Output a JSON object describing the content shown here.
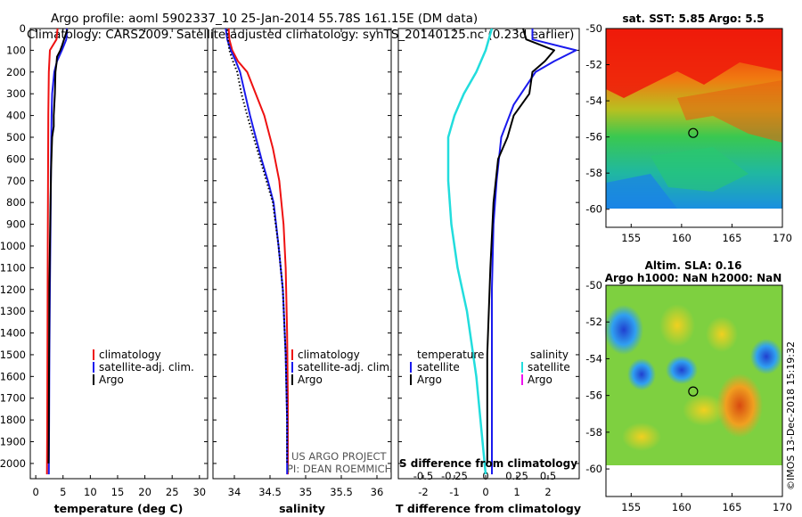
{
  "title": {
    "line1": "Argo profile: aoml 5902337_10 25-Jan-2014 55.78S 161.15E (DM data)",
    "line2": "Climatology: CARS2009. Satellite-adjusted climatology: synTS_20140125.nc (0.23d earlier)"
  },
  "credits": {
    "project": "US ARGO PROJECT",
    "pi": "PI: DEAN ROEMMICH",
    "imos": "©IMOS 13-Dec-2018 15:19:32"
  },
  "colors": {
    "climatology": "#ee1111",
    "satellite": "#1a1aee",
    "argo": "#000000",
    "satellite_salinity": "#22dddd",
    "argo_salinity": "#ee11ee"
  },
  "chart_data": [
    {
      "type": "line",
      "id": "temperature",
      "xlabel": "temperature (deg C)",
      "ylabel": "",
      "xlim": [
        -1,
        31.5
      ],
      "ylim": [
        2070,
        0
      ],
      "xticks": [
        0,
        5,
        10,
        15,
        20,
        25,
        30
      ],
      "yticks": [
        0,
        100,
        200,
        300,
        400,
        500,
        600,
        700,
        800,
        900,
        1000,
        1100,
        1200,
        1300,
        1400,
        1500,
        1600,
        1700,
        1800,
        1900,
        2000
      ],
      "legend": [
        "climatology",
        "satellite-adj. clim.",
        "Argo"
      ],
      "series": [
        {
          "name": "climatology",
          "x": [
            4.0,
            3.8,
            2.6,
            2.4,
            2.3,
            2.25,
            2.2,
            2.15,
            2.1,
            2.05
          ],
          "y": [
            0,
            50,
            100,
            200,
            400,
            700,
            1000,
            1400,
            1800,
            2050
          ]
        },
        {
          "name": "satellite-adj. clim.",
          "x": [
            5.7,
            5.6,
            4.8,
            3.9,
            3.4,
            3.0,
            2.9,
            2.8,
            2.7,
            2.6,
            2.5,
            2.45,
            2.4
          ],
          "y": [
            0,
            50,
            100,
            150,
            200,
            300,
            400,
            600,
            900,
            1200,
            1500,
            1800,
            2050
          ]
        },
        {
          "name": "Argo",
          "x": [
            5.8,
            5.3,
            4.8,
            4.5,
            4.3,
            3.9,
            3.8,
            3.6,
            3.5,
            3.3,
            3.3,
            3.0,
            2.8,
            2.7,
            2.6,
            2.5,
            2.45,
            2.4,
            2.35
          ],
          "y": [
            5,
            40,
            80,
            100,
            110,
            130,
            160,
            200,
            300,
            400,
            450,
            500,
            650,
            800,
            1000,
            1200,
            1500,
            1800,
            2000
          ]
        }
      ]
    },
    {
      "type": "line",
      "id": "salinity",
      "xlabel": "salinity",
      "ylabel": "",
      "xlim": [
        33.7,
        36.2
      ],
      "ylim": [
        2070,
        0
      ],
      "xticks": [
        34,
        34.5,
        35,
        35.5,
        36
      ],
      "legend": [
        "climatology",
        "satellite-adj. clim.",
        "Argo"
      ],
      "series": [
        {
          "name": "climatology",
          "x": [
            33.92,
            33.93,
            33.97,
            34.05,
            34.18,
            34.3,
            34.42,
            34.54,
            34.63,
            34.69,
            34.72,
            34.74,
            34.75,
            34.75
          ],
          "y": [
            0,
            50,
            100,
            150,
            200,
            300,
            400,
            550,
            700,
            900,
            1100,
            1400,
            1700,
            2050
          ]
        },
        {
          "name": "satellite-adj. clim.",
          "x": [
            33.88,
            33.9,
            33.95,
            34.02,
            34.08,
            34.15,
            34.22,
            34.3,
            34.38,
            34.47,
            34.55,
            34.62,
            34.68,
            34.72,
            34.74,
            34.74
          ],
          "y": [
            0,
            50,
            100,
            150,
            200,
            300,
            400,
            500,
            600,
            700,
            800,
            1000,
            1200,
            1500,
            1800,
            2050
          ]
        },
        {
          "name": "Argo",
          "x": [
            33.9,
            33.91,
            33.93,
            33.98,
            34.04,
            34.1,
            34.18,
            34.27,
            34.36,
            34.45,
            34.54,
            34.62,
            34.68,
            34.72,
            34.74,
            34.74
          ],
          "y": [
            5,
            50,
            100,
            150,
            200,
            300,
            400,
            500,
            600,
            700,
            800,
            1000,
            1200,
            1500,
            1800,
            2000
          ]
        }
      ]
    },
    {
      "type": "line",
      "id": "difference",
      "xlabel": "T difference from climatology",
      "ylabel": "",
      "xlim": [
        -2.8,
        3.0
      ],
      "ylim": [
        2070,
        0
      ],
      "xticks": [
        -2,
        -1,
        0,
        1,
        2
      ],
      "secondary_xlabel": "S difference from climatology",
      "secondary_xtick_labels": [
        "-0.5",
        "-0.25",
        "0",
        "0.25",
        "0.5"
      ],
      "legend_left_title": "temperature",
      "legend_right_title": "salinity",
      "legend": [
        "satellite",
        "Argo",
        "satellite",
        "Argo"
      ],
      "series": [
        {
          "name": "satellite",
          "x": [
            1.5,
            1.5,
            2.9,
            2.2,
            1.6,
            0.9,
            0.5,
            0.35,
            0.25,
            0.2,
            0.2,
            0.2
          ],
          "y": [
            0,
            50,
            100,
            150,
            200,
            350,
            500,
            700,
            900,
            1200,
            1600,
            2050
          ]
        },
        {
          "name": "Argo",
          "x": [
            1.2,
            1.3,
            2.2,
            1.9,
            1.5,
            1.4,
            0.9,
            0.7,
            0.4,
            0.25,
            0.15,
            0.05,
            0.05
          ],
          "y": [
            0,
            50,
            100,
            150,
            200,
            300,
            400,
            500,
            600,
            800,
            1100,
            1500,
            2000
          ]
        },
        {
          "name": "satellite",
          "x": [
            0.2,
            0.0,
            -0.3,
            -0.7,
            -1.0,
            -1.2,
            -1.2,
            -1.1,
            -0.9,
            -0.6,
            -0.3,
            0.0
          ],
          "y": [
            0,
            100,
            200,
            300,
            400,
            500,
            700,
            900,
            1100,
            1300,
            1600,
            2050
          ]
        }
      ]
    },
    {
      "type": "heatmap",
      "id": "sst_map",
      "title": "sat. SST: 5.85 Argo: 5.5",
      "xlim": [
        152.5,
        170
      ],
      "ylim": [
        -61,
        -50
      ],
      "xticks": [
        155,
        160,
        165,
        170
      ],
      "yticks": [
        -50,
        -52,
        -54,
        -56,
        -58,
        -60
      ],
      "data_ylim": [
        -60,
        -50
      ],
      "profile_marker": {
        "lon": 161.15,
        "lat": -55.78
      }
    },
    {
      "type": "heatmap",
      "id": "sla_map",
      "title": "Altim. SLA: 0.16",
      "subtitle": "Argo h1000: NaN h2000: NaN",
      "xlim": [
        152.5,
        170
      ],
      "ylim": [
        -61.5,
        -50
      ],
      "xticks": [
        155,
        160,
        165,
        170
      ],
      "yticks": [
        -50,
        -52,
        -54,
        -56,
        -58,
        -60
      ],
      "data_ylim": [
        -60,
        -50
      ],
      "profile_marker": {
        "lon": 161.15,
        "lat": -55.78
      }
    }
  ]
}
